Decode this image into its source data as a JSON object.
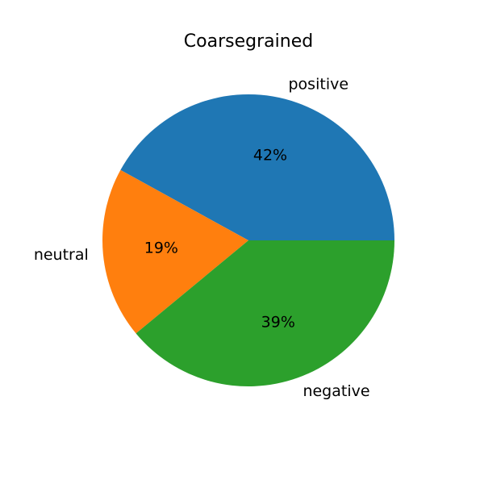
{
  "chart_data": {
    "type": "pie",
    "title": "Coarsegrained",
    "slices": [
      {
        "label": "positive",
        "value": 42,
        "pct_label": "42%",
        "color": "#1f77b4"
      },
      {
        "label": "neutral",
        "value": 19,
        "pct_label": "19%",
        "color": "#ff7f0e"
      },
      {
        "label": "negative",
        "value": 39,
        "pct_label": "39%",
        "color": "#2ca02c"
      }
    ],
    "legend": false
  }
}
